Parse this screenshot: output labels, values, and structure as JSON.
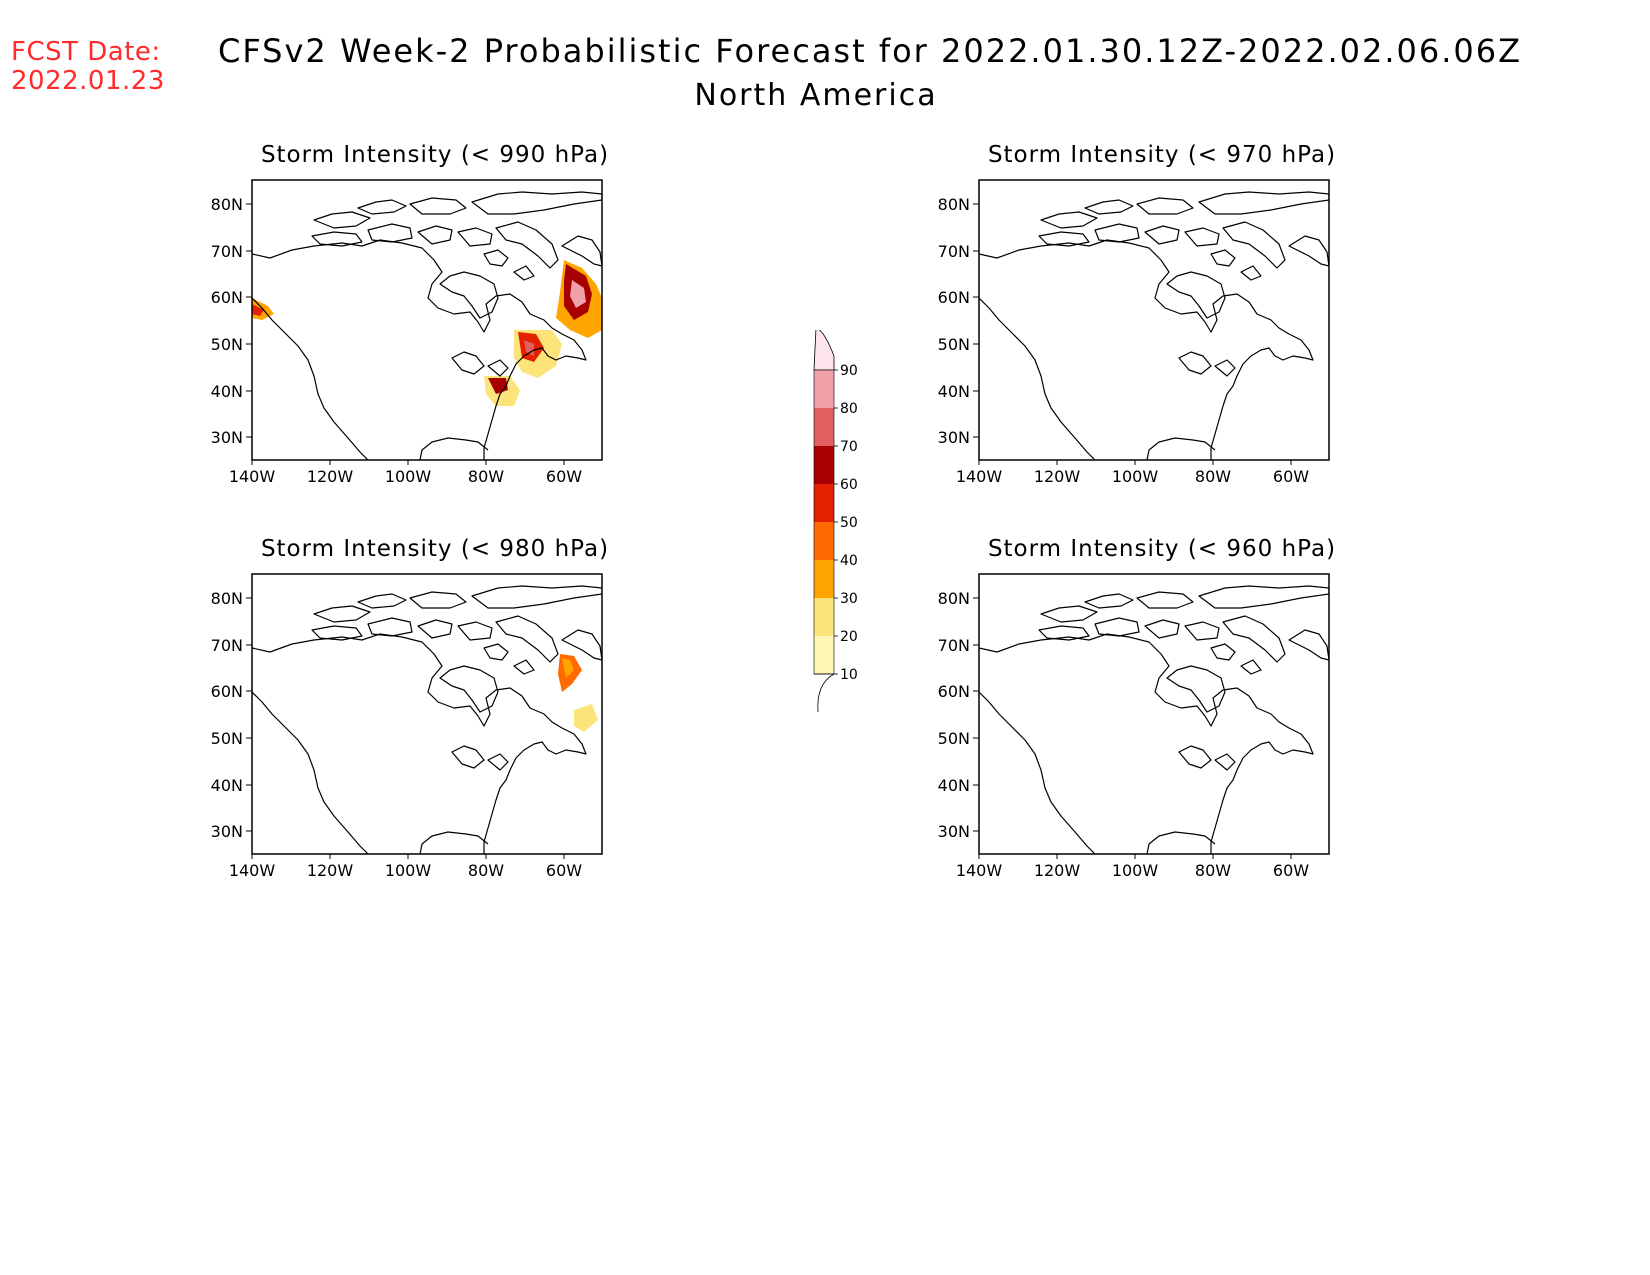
{
  "header": {
    "fcst_line1": "FCST Date:",
    "fcst_line2": "2022.01.23",
    "title": "CFSv2 Week-2 Probabilistic Forecast for 2022.01.30.12Z-2022.02.06.06Z",
    "subtitle": "North America"
  },
  "colors": {
    "header_date": "#ff2a2a",
    "coastline": "#000000",
    "levels": [
      "#fff8b4",
      "#fde47a",
      "#ffa500",
      "#ff6a00",
      "#e42000",
      "#a80000",
      "#e06060",
      "#f0a0a8",
      "#fde4ea"
    ]
  },
  "map_axes": {
    "lat_ticks": [
      "80N",
      "70N",
      "60N",
      "50N",
      "40N",
      "30N"
    ],
    "lon_ticks": [
      "140W",
      "120W",
      "100W",
      "80W",
      "60W"
    ]
  },
  "panels": [
    {
      "id": "p990",
      "title": "Storm Intensity (< 990 hPa)",
      "has_shading": true
    },
    {
      "id": "p970",
      "title": "Storm Intensity (< 970 hPa)",
      "has_shading": false
    },
    {
      "id": "p980",
      "title": "Storm Intensity (< 980 hPa)",
      "has_shading": true
    },
    {
      "id": "p960",
      "title": "Storm Intensity (< 960 hPa)",
      "has_shading": false
    }
  ],
  "colorbar": {
    "labels": [
      "90",
      "80",
      "70",
      "60",
      "50",
      "40",
      "30",
      "20",
      "10"
    ],
    "unit_note": ""
  }
}
